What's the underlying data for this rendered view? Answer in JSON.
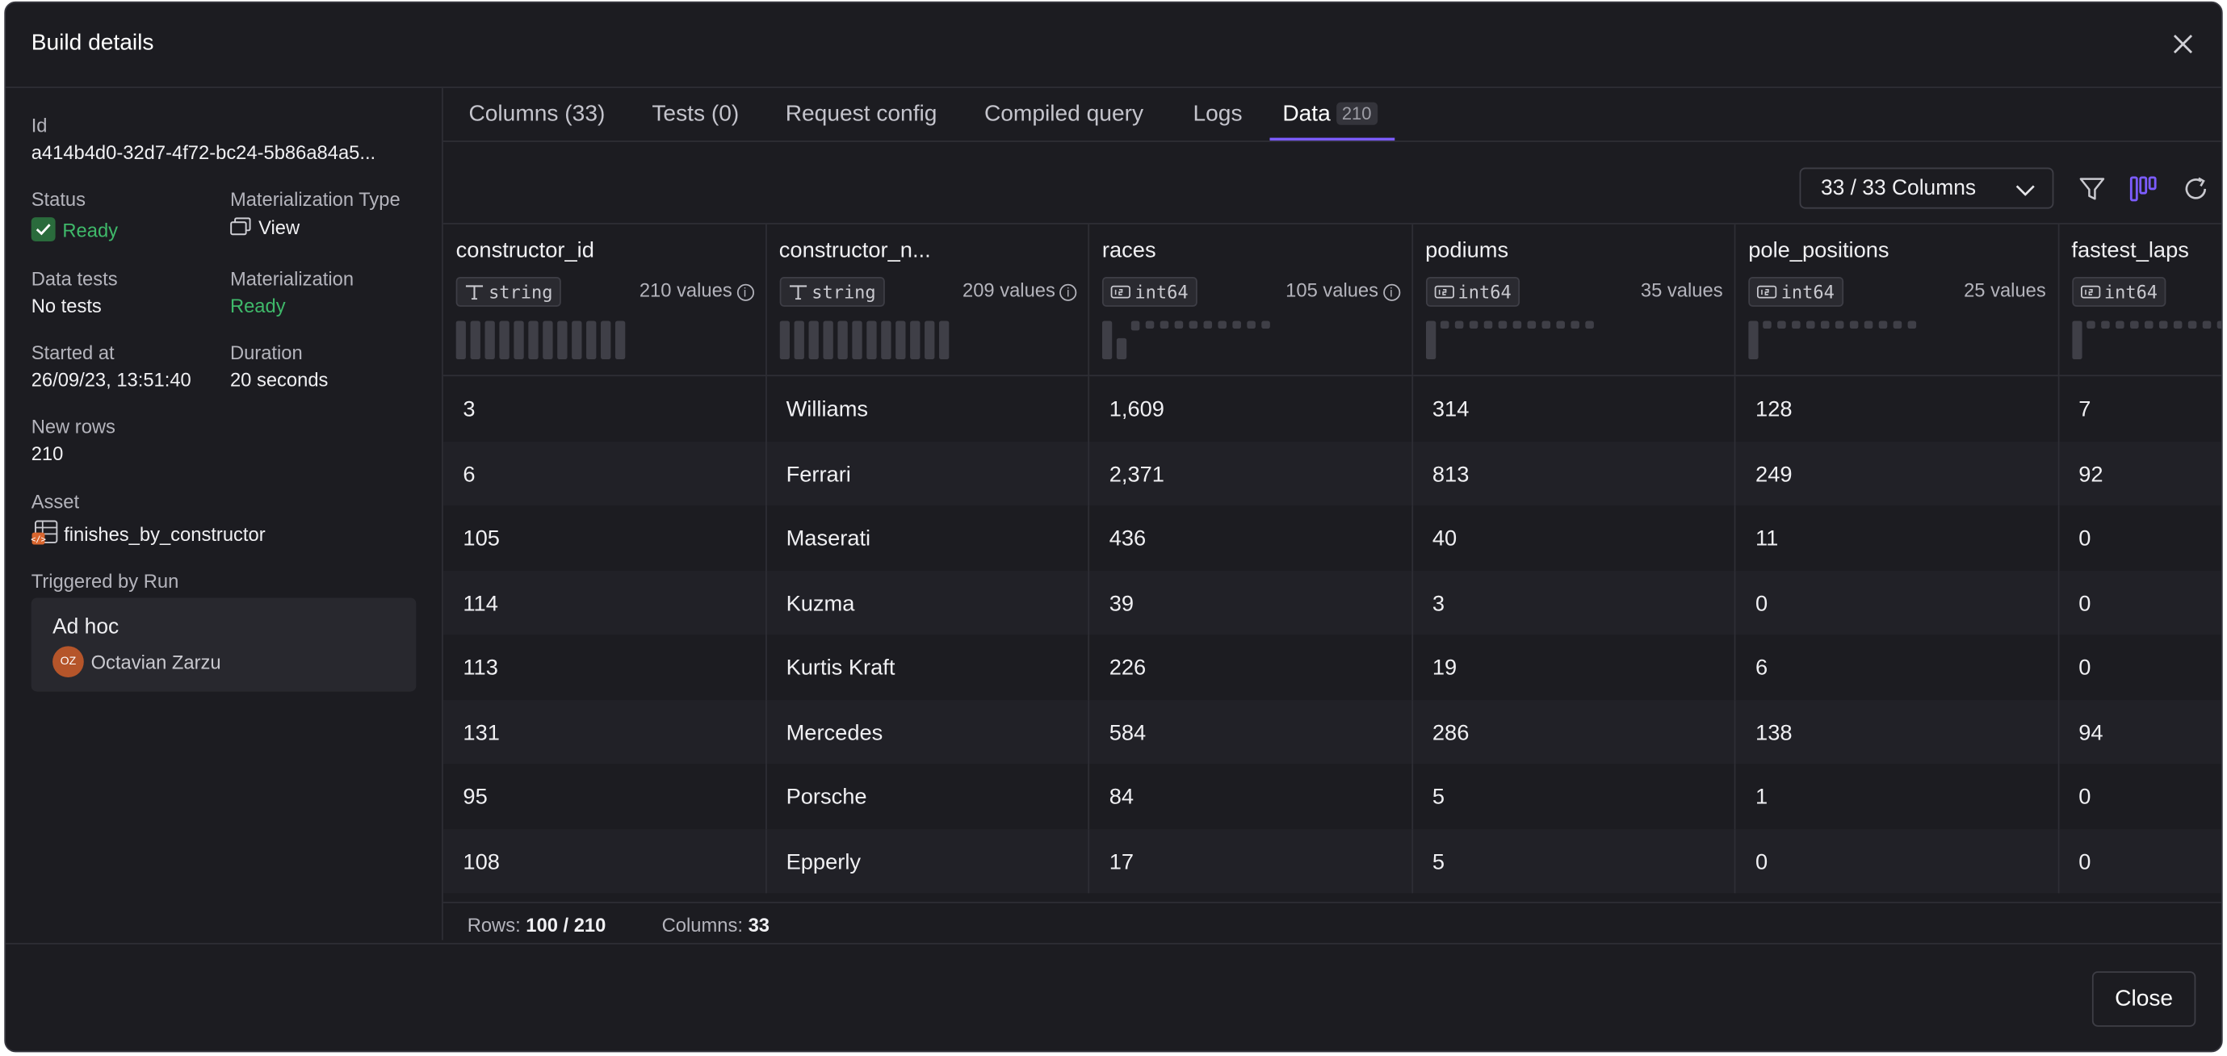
{
  "modal": {
    "title": "Build details",
    "close_button": "Close"
  },
  "sidebar": {
    "id_label": "Id",
    "id_value": "a414b4d0-32d7-4f72-bc24-5b86a84a5...",
    "status_label": "Status",
    "status_value": "Ready",
    "mat_type_label": "Materialization Type",
    "mat_type_value": "View",
    "data_tests_label": "Data tests",
    "data_tests_value": "No tests",
    "materialization_label": "Materialization",
    "materialization_value": "Ready",
    "started_label": "Started at",
    "started_value": "26/09/23, 13:51:40",
    "duration_label": "Duration",
    "duration_value": "20 seconds",
    "new_rows_label": "New rows",
    "new_rows_value": "210",
    "asset_label": "Asset",
    "asset_value": "finishes_by_constructor",
    "triggered_label": "Triggered by Run",
    "run_title": "Ad hoc",
    "run_avatar": "OZ",
    "run_user": "Octavian Zarzu"
  },
  "tabs": [
    {
      "label": "Columns (33)"
    },
    {
      "label": "Tests (0)"
    },
    {
      "label": "Request config"
    },
    {
      "label": "Compiled query"
    },
    {
      "label": "Logs"
    },
    {
      "label": "Data",
      "count": "210"
    }
  ],
  "toolbar": {
    "column_select": "33 / 33 Columns"
  },
  "columns": [
    {
      "name": "constructor_id",
      "type": "string",
      "values": "210 values",
      "info": true,
      "spark": [
        1,
        1,
        1,
        1,
        1,
        1,
        1,
        1,
        1,
        1,
        1,
        1
      ]
    },
    {
      "name": "constructor_n...",
      "type": "string",
      "values": "209 values",
      "info": true,
      "spark": [
        1,
        1,
        1,
        1,
        1,
        1,
        1,
        1,
        1,
        1,
        1,
        1
      ]
    },
    {
      "name": "races",
      "type": "int64",
      "values": "105 values",
      "info": true,
      "spark": [
        0.95,
        0.55,
        0.25,
        0.2,
        0.2,
        0.2,
        0.2,
        0.2,
        0.2,
        0.2,
        0.2,
        0.2
      ]
    },
    {
      "name": "podiums",
      "type": "int64",
      "values": "35 values",
      "info": false,
      "spark": [
        0.95,
        0.2,
        0.2,
        0.2,
        0.2,
        0.2,
        0.2,
        0.2,
        0.2,
        0.2,
        0.2,
        0.2
      ]
    },
    {
      "name": "pole_positions",
      "type": "int64",
      "values": "25 values",
      "info": false,
      "spark": [
        0.95,
        0.2,
        0.2,
        0.2,
        0.2,
        0.2,
        0.2,
        0.2,
        0.2,
        0.2,
        0.2,
        0.2
      ]
    },
    {
      "name": "fastest_laps",
      "type": "int64",
      "values": "",
      "info": false,
      "spark": [
        0.95,
        0.2,
        0.2,
        0.2,
        0.2,
        0.2,
        0.2,
        0.2,
        0.2,
        0.2,
        0.2,
        0.2
      ]
    }
  ],
  "rows": [
    [
      "3",
      "Williams",
      "1,609",
      "314",
      "128",
      "7"
    ],
    [
      "6",
      "Ferrari",
      "2,371",
      "813",
      "249",
      "92"
    ],
    [
      "105",
      "Maserati",
      "436",
      "40",
      "11",
      "0"
    ],
    [
      "114",
      "Kuzma",
      "39",
      "3",
      "0",
      "0"
    ],
    [
      "113",
      "Kurtis Kraft",
      "226",
      "19",
      "6",
      "0"
    ],
    [
      "131",
      "Mercedes",
      "584",
      "286",
      "138",
      "94"
    ],
    [
      "95",
      "Porsche",
      "84",
      "5",
      "1",
      "0"
    ],
    [
      "108",
      "Epperly",
      "17",
      "5",
      "0",
      "0"
    ]
  ],
  "footer": {
    "rows_label": "Rows:",
    "rows_value": "100 / 210",
    "cols_label": "Columns:",
    "cols_value": "33"
  },
  "colors": {
    "accent": "#7c5cff",
    "ready": "#3fb96a",
    "avatar": "#b5552a"
  }
}
